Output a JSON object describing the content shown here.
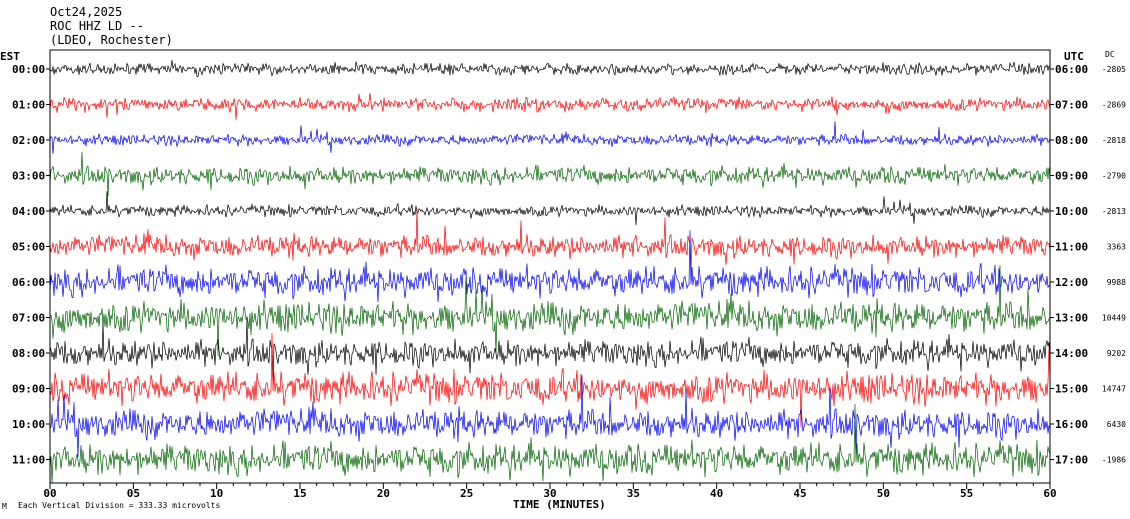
{
  "header": {
    "date": "Oct24,2025",
    "station": "ROC HHZ LD --",
    "network": "(LDEO, Rochester)"
  },
  "left_axis_title": "EST",
  "right_axis_title": "UTC",
  "dc_title": "DC",
  "footer": {
    "scale_note": "Each Vertical Division = 333.33 microvolts",
    "corner_mark": "M"
  },
  "colors": {
    "trace_cycle": [
      "#000000",
      "#ff0000",
      "#0000ff",
      "#006400"
    ],
    "frame": "#000000",
    "background": "#ffffff"
  },
  "chart_data": {
    "type": "line",
    "title": "ROC HHZ LD --",
    "xlabel": "TIME (MINUTES)",
    "ylabel": "",
    "x_ticks": [
      "00",
      "05",
      "10",
      "15",
      "20",
      "25",
      "30",
      "35",
      "40",
      "45",
      "50",
      "55",
      "60"
    ],
    "xlim": [
      0,
      60
    ],
    "grid": false,
    "legend": "none",
    "series": [
      {
        "est": "00:00",
        "utc": "06:00",
        "dc": "-2805",
        "color": "#000000",
        "amplitude": 1.0
      },
      {
        "est": "01:00",
        "utc": "07:00",
        "dc": "-2869",
        "color": "#ff0000",
        "amplitude": 1.2
      },
      {
        "est": "02:00",
        "utc": "08:00",
        "dc": "-2818",
        "color": "#0000ff",
        "amplitude": 1.0
      },
      {
        "est": "03:00",
        "utc": "09:00",
        "dc": "-2790",
        "color": "#006400",
        "amplitude": 1.6
      },
      {
        "est": "04:00",
        "utc": "10:00",
        "dc": "-2813",
        "color": "#000000",
        "amplitude": 1.0
      },
      {
        "est": "05:00",
        "utc": "11:00",
        "dc": "3363",
        "color": "#ff0000",
        "amplitude": 2.0
      },
      {
        "est": "06:00",
        "utc": "12:00",
        "dc": "9988",
        "color": "#0000ff",
        "amplitude": 2.6
      },
      {
        "est": "07:00",
        "utc": "13:00",
        "dc": "10449",
        "color": "#006400",
        "amplitude": 2.8
      },
      {
        "est": "08:00",
        "utc": "14:00",
        "dc": "9202",
        "color": "#000000",
        "amplitude": 2.4
      },
      {
        "est": "09:00",
        "utc": "15:00",
        "dc": "14747",
        "color": "#ff0000",
        "amplitude": 2.8
      },
      {
        "est": "10:00",
        "utc": "16:00",
        "dc": "6430",
        "color": "#0000ff",
        "amplitude": 2.6
      },
      {
        "est": "11:00",
        "utc": "17:00",
        "dc": "-1986",
        "color": "#006400",
        "amplitude": 2.8
      }
    ]
  }
}
